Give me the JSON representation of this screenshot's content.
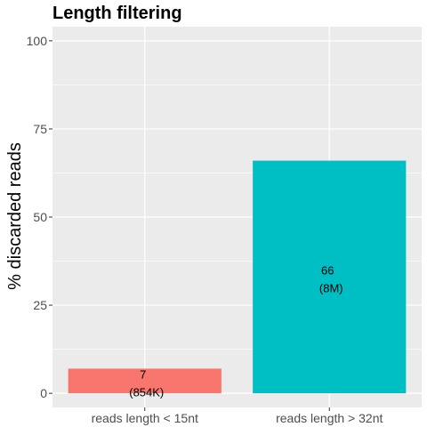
{
  "chart_data": {
    "type": "bar",
    "title": "Length filtering",
    "xlabel": "",
    "ylabel": "% discarded reads",
    "categories": [
      "reads length < 15nt",
      "reads length > 32nt"
    ],
    "values": [
      7,
      66
    ],
    "data_labels": [
      [
        "7",
        "(854K)"
      ],
      [
        "66",
        "(8M)"
      ]
    ],
    "colors": [
      "#F8766D",
      "#00BFC4"
    ],
    "ylim": [
      -4,
      104
    ],
    "yticks": [
      0,
      25,
      50,
      75,
      100
    ],
    "ytick_labels": [
      "0",
      "25",
      "50",
      "75",
      "100"
    ],
    "grid": true,
    "legend": "none",
    "panel_background": "#EBEBEB",
    "grid_color": "#FFFFFF"
  }
}
